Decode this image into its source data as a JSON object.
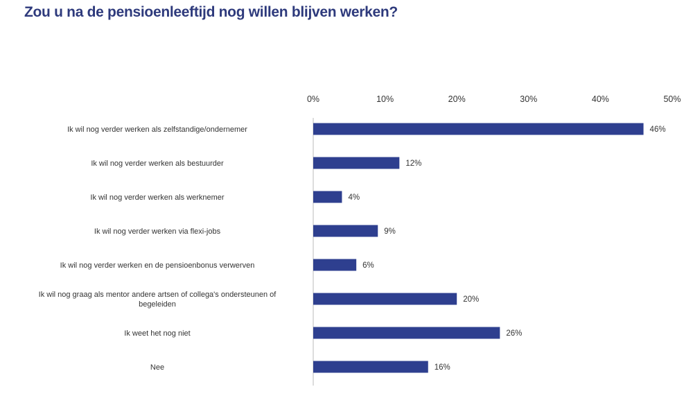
{
  "chart_data": {
    "type": "bar",
    "orientation": "horizontal",
    "title": "Zou u na de pensioenleeftijd nog willen blijven werken?",
    "categories": [
      "Ik wil nog verder werken als zelfstandige/ondernemer",
      "Ik wil nog verder werken als bestuurder",
      "Ik wil nog verder werken als werknemer",
      "Ik wil nog verder werken via flexi-jobs",
      "Ik wil nog verder werken en de pensioenbonus verwerven",
      "Ik wil nog graag als mentor andere artsen of collega's ondersteunen of begeleiden",
      "Ik weet het nog niet",
      "Nee"
    ],
    "values": [
      46,
      12,
      4,
      9,
      6,
      20,
      26,
      16
    ],
    "data_labels": [
      "46%",
      "12%",
      "4%",
      "9%",
      "6%",
      "20%",
      "26%",
      "16%"
    ],
    "xlim": [
      0,
      50
    ],
    "x_ticks": [
      "0%",
      "10%",
      "20%",
      "30%",
      "40%",
      "50%"
    ],
    "x_axis_position": "top",
    "grid": false,
    "bar_color": "#2e3f8f"
  }
}
